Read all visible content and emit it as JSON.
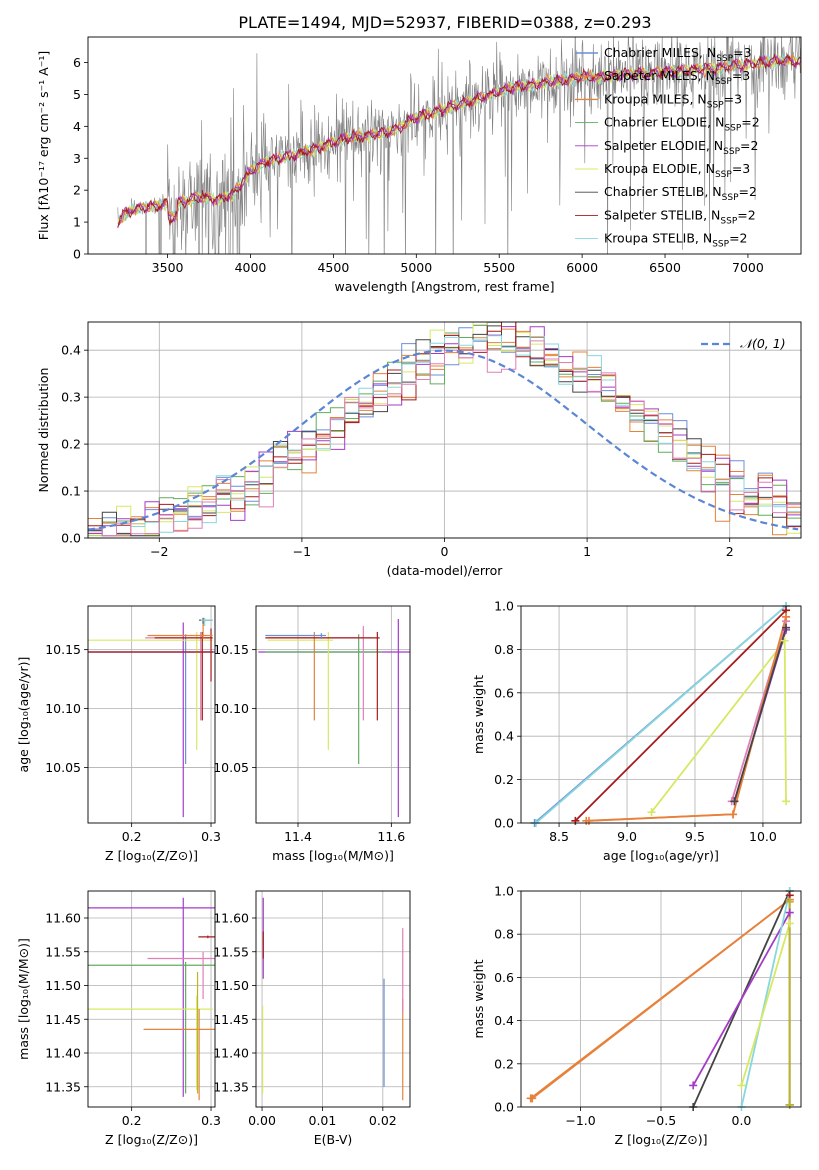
{
  "figure": {
    "title": "PLATE=1494, MJD=52937, FIBERID=0388, z=0.293"
  },
  "colors": {
    "Chabrier MILES": "#6c8fd9",
    "Salpeter MILES": "#e8803b",
    "Kroupa MILES": "#e2853a",
    "Chabrier ELODIE": "#5fae5f",
    "Salpeter ELODIE": "#a43bc8",
    "Kroupa ELODIE": "#d7e864",
    "Chabrier STELIB": "#444444",
    "Salpeter STELIB": "#a51c1c",
    "Kroupa STELIB": "#89d7dd",
    "extra_pink": "#e07fb8",
    "extra_olive": "#b6b82a",
    "data_gray": "#808080",
    "normal_curve": "#5b86d6"
  },
  "chart_data": [
    {
      "id": "spectrum",
      "type": "line",
      "xlabel": "wavelength [Angstrom, rest frame]",
      "ylabel": "Flux [fλ10⁻¹⁷ erg cm⁻² s⁻¹ A⁻¹]",
      "xlim": [
        3020,
        7320
      ],
      "ylim": [
        0,
        6.8
      ],
      "xticks": [
        3500,
        4000,
        4500,
        5000,
        5500,
        6000,
        6500,
        7000
      ],
      "yticks": [
        0,
        1,
        2,
        3,
        4,
        5,
        6
      ],
      "grid": false,
      "legend_position": "top-right",
      "legend": [
        "Chabrier MILES, N_SSP=3",
        "Salpeter MILES, N_SSP=3",
        "Kroupa MILES, N_SSP=3",
        "Chabrier ELODIE, N_SSP=2",
        "Salpeter ELODIE, N_SSP=2",
        "Kroupa ELODIE, N_SSP=3",
        "Chabrier STELIB, N_SSP=2",
        "Salpeter STELIB, N_SSP=2",
        "Kroupa STELIB, N_SSP=2"
      ],
      "model_continuum": {
        "x": [
          3200,
          3250,
          3300,
          3400,
          3500,
          3600,
          3700,
          3800,
          3900,
          4000,
          4100,
          4200,
          4300,
          4400,
          4500,
          4600,
          4700,
          4800,
          4900,
          5000,
          5100,
          5200,
          5300,
          5400,
          5500,
          5600,
          5700,
          5800,
          5900,
          6000,
          6100,
          6200,
          6300,
          6400,
          6500,
          6600,
          6700,
          6800,
          6900,
          7000,
          7100,
          7200
        ],
        "y": [
          1.0,
          1.3,
          1.4,
          1.5,
          1.55,
          1.65,
          1.8,
          1.7,
          1.9,
          2.6,
          2.9,
          3.05,
          3.15,
          3.3,
          3.5,
          3.65,
          3.7,
          3.8,
          3.95,
          4.3,
          4.45,
          4.6,
          4.75,
          4.9,
          5.1,
          5.25,
          5.3,
          5.4,
          5.45,
          5.55,
          5.55,
          5.6,
          5.65,
          5.65,
          5.7,
          5.75,
          5.8,
          5.8,
          5.9,
          5.95,
          6.0,
          6.05
        ]
      }
    },
    {
      "id": "residuals",
      "type": "line",
      "xlabel": "(data-model)/error",
      "ylabel": "Normed distribution",
      "xlim": [
        -2.5,
        2.5
      ],
      "ylim": [
        0,
        0.46
      ],
      "xticks": [
        -2,
        -1,
        0,
        1,
        2
      ],
      "yticks": [
        0.0,
        0.1,
        0.2,
        0.3,
        0.4
      ],
      "grid": true,
      "legend_position": "top-right",
      "legend": [
        "𝒩(0, 1)"
      ],
      "curve": "standard normal density"
    },
    {
      "id": "age_vs_Z",
      "type": "scatter",
      "xlabel": "Z [log₁₀(Z/Z⊙)]",
      "ylabel": "age  [log₁₀(age/yr)]",
      "xlim": [
        0.145,
        0.305
      ],
      "ylim": [
        10.003,
        10.187
      ],
      "xticks": [
        0.2,
        0.3
      ],
      "yticks": [
        10.05,
        10.1,
        10.15
      ],
      "grid": true,
      "errorbars": [
        {
          "color": "Salpeter ELODIE",
          "x": 0.265,
          "y": 10.148,
          "xerr": [
            0.12,
            0.045
          ],
          "yerr": [
            0.14,
            0.025
          ]
        },
        {
          "color": "Chabrier MILES",
          "x": 0.268,
          "y": 10.148,
          "xerr": [
            0.12,
            0.04
          ],
          "yerr": [
            0.095,
            0.015
          ]
        },
        {
          "color": "Kroupa ELODIE",
          "x": 0.282,
          "y": 10.158,
          "xerr": [
            0.14,
            0.02
          ],
          "yerr": [
            0.093,
            0.007
          ]
        },
        {
          "color": "extra_pink",
          "x": 0.287,
          "y": 10.16,
          "xerr": [
            0.07,
            0.015
          ],
          "yerr": [
            0.07,
            0.005
          ]
        },
        {
          "color": "Salpeter STELIB",
          "x": 0.289,
          "y": 10.16,
          "xerr": [
            0.06,
            0.013
          ],
          "yerr": [
            0.07,
            0.005
          ]
        },
        {
          "color": "Chabrier STELIB",
          "x": 0.29,
          "y": 10.175,
          "xerr": [
            0.005,
            0.012
          ],
          "yerr": [
            0.005,
            0.002
          ]
        },
        {
          "color": "Kroupa STELIB",
          "x": 0.292,
          "y": 10.175,
          "xerr": [
            0.005,
            0.01
          ],
          "yerr": [
            0.005,
            0.002
          ]
        },
        {
          "color": "Salpeter STELIB",
          "x": 0.3,
          "y": 10.148,
          "xerr": [
            0.155,
            0.003
          ],
          "yerr": [
            0.025,
            0.02
          ]
        },
        {
          "color": "Kroupa MILES",
          "x": 0.29,
          "y": 10.162,
          "xerr": [
            0.07,
            0.012
          ],
          "yerr": [
            0.003,
            0.01
          ]
        }
      ]
    },
    {
      "id": "age_vs_mass",
      "type": "scatter",
      "xlabel": "mass [log₁₀(M/M⊙)]",
      "ylabel": "",
      "xlim": [
        11.31,
        11.64
      ],
      "ylim": [
        10.003,
        10.187
      ],
      "xticks": [
        11.4,
        11.6
      ],
      "yticks": [
        10.05,
        10.1,
        10.15
      ],
      "grid": true,
      "errorbars": [
        {
          "color": "Salpeter ELODIE",
          "x": 11.615,
          "y": 10.148,
          "xerr": [
            0.3,
            0.03
          ],
          "yerr": [
            0.14,
            0.028
          ]
        },
        {
          "color": "Chabrier ELODIE",
          "x": 11.53,
          "y": 10.148,
          "xerr": [
            0.2,
            0.05
          ],
          "yerr": [
            0.095,
            0.015
          ]
        },
        {
          "color": "Kroupa ELODIE",
          "x": 11.465,
          "y": 10.158,
          "xerr": [
            0.13,
            0.01
          ],
          "yerr": [
            0.093,
            0.007
          ]
        },
        {
          "color": "Kroupa MILES",
          "x": 11.435,
          "y": 10.16,
          "xerr": [
            0.1,
            0.01
          ],
          "yerr": [
            0.07,
            0.005
          ]
        },
        {
          "color": "extra_pink",
          "x": 11.54,
          "y": 10.16,
          "xerr": [
            0.2,
            0.02
          ],
          "yerr": [
            0.07,
            0.01
          ]
        },
        {
          "color": "Salpeter STELIB",
          "x": 11.57,
          "y": 10.16,
          "xerr": [
            0.24,
            0.005
          ],
          "yerr": [
            0.07,
            0.005
          ]
        },
        {
          "color": "Chabrier MILES",
          "x": 11.45,
          "y": 10.162,
          "xerr": [
            0.12,
            0.01
          ],
          "yerr": [
            0.003,
            0.002
          ]
        }
      ]
    },
    {
      "id": "cumweight_vs_age",
      "type": "line",
      "xlabel": "age  [log₁₀(age/yr)]",
      "ylabel": "mass weight",
      "xlim": [
        8.22,
        10.28
      ],
      "ylim": [
        0,
        1
      ],
      "xticks": [
        8.5,
        9.0,
        9.5,
        10.0
      ],
      "yticks": [
        0.0,
        0.2,
        0.4,
        0.6,
        0.8,
        1.0
      ],
      "grid": true,
      "series": [
        {
          "color": "Chabrier MILES",
          "x": [
            8.32,
            10.17
          ],
          "y": [
            0.0,
            1.0
          ]
        },
        {
          "color": "Kroupa STELIB",
          "x": [
            8.33,
            10.17
          ],
          "y": [
            0.0,
            1.0
          ]
        },
        {
          "color": "Salpeter STELIB",
          "x": [
            8.62,
            10.17
          ],
          "y": [
            0.01,
            0.98
          ]
        },
        {
          "color": "Kroupa ELODIE",
          "x": [
            9.18,
            10.16,
            10.17
          ],
          "y": [
            0.05,
            0.84,
            0.1
          ]
        },
        {
          "color": "extra_pink",
          "x": [
            9.77,
            10.17
          ],
          "y": [
            0.1,
            0.93
          ]
        },
        {
          "color": "Salpeter ELODIE",
          "x": [
            9.79,
            10.17
          ],
          "y": [
            0.1,
            0.89
          ]
        },
        {
          "color": "Kroupa MILES",
          "x": [
            8.7,
            9.78,
            10.17
          ],
          "y": [
            0.01,
            0.04,
            0.95
          ]
        },
        {
          "color": "Salpeter MILES",
          "x": [
            8.72,
            9.78,
            10.17
          ],
          "y": [
            0.01,
            0.04,
            0.95
          ]
        },
        {
          "color": "Chabrier STELIB",
          "x": [
            9.79,
            10.17
          ],
          "y": [
            0.1,
            0.9
          ]
        }
      ]
    },
    {
      "id": "mass_vs_Z",
      "type": "scatter",
      "xlabel": "Z [log₁₀(Z/Z⊙)]",
      "ylabel": "mass [log₁₀(M/M⊙)]",
      "xlim": [
        0.145,
        0.305
      ],
      "ylim": [
        11.32,
        11.64
      ],
      "xticks": [
        0.2,
        0.3
      ],
      "yticks": [
        11.35,
        11.4,
        11.45,
        11.5,
        11.55,
        11.6
      ],
      "grid": true,
      "errorbars": [
        {
          "color": "Salpeter ELODIE",
          "x": 0.265,
          "y": 11.615,
          "xerr": [
            0.12,
            0.045
          ],
          "yerr": [
            0.28,
            0.015
          ]
        },
        {
          "color": "Chabrier ELODIE",
          "x": 0.268,
          "y": 11.53,
          "xerr": [
            0.125,
            0.04
          ],
          "yerr": [
            0.19,
            0.005
          ]
        },
        {
          "color": "Kroupa ELODIE",
          "x": 0.282,
          "y": 11.465,
          "xerr": [
            0.14,
            0.02
          ],
          "yerr": [
            0.12,
            0.02
          ]
        },
        {
          "color": "Kroupa MILES",
          "x": 0.285,
          "y": 11.435,
          "xerr": [
            0.07,
            0.02
          ],
          "yerr": [
            0.105,
            0.03
          ]
        },
        {
          "color": "extra_pink",
          "x": 0.29,
          "y": 11.54,
          "xerr": [
            0.07,
            0.015
          ],
          "yerr": [
            0.06,
            0.01
          ]
        },
        {
          "color": "Salpeter STELIB",
          "x": 0.296,
          "y": 11.572,
          "xerr": [
            0.012,
            0.01
          ],
          "yerr": [
            0.002,
            0.002
          ]
        },
        {
          "color": "extra_olive",
          "x": 0.283,
          "y": 11.48,
          "xerr": [
            0.0,
            0.0
          ],
          "yerr": [
            0.14,
            0.04
          ]
        }
      ]
    },
    {
      "id": "mass_vs_ebv",
      "type": "scatter",
      "xlabel": "E(B-V)",
      "ylabel": "",
      "xlim": [
        -0.001,
        0.0245
      ],
      "ylim": [
        11.32,
        11.64
      ],
      "xticks": [
        0.0,
        0.01,
        0.02
      ],
      "yticks": [
        11.35,
        11.4,
        11.45,
        11.5,
        11.55,
        11.6
      ],
      "grid": true,
      "errorbars": [
        {
          "color": "Salpeter ELODIE",
          "x": 0.0002,
          "y": 11.57,
          "yerr": [
            0.06,
            0.06
          ]
        },
        {
          "color": "Salpeter STELIB",
          "x": 0.0002,
          "y": 11.56,
          "yerr": [
            0.02,
            0.02
          ]
        },
        {
          "color": "Kroupa ELODIE",
          "x": 0.0001,
          "y": 11.44,
          "yerr": [
            0.1,
            0.03
          ]
        },
        {
          "color": "Chabrier MILES",
          "x": 0.0202,
          "y": 11.43,
          "yerr": [
            0.08,
            0.08
          ]
        },
        {
          "color": "Kroupa MILES",
          "x": 0.0233,
          "y": 11.41,
          "yerr": [
            0.08,
            0.07
          ]
        },
        {
          "color": "extra_pink",
          "x": 0.0233,
          "y": 11.52,
          "yerr": [
            0.06,
            0.065
          ]
        }
      ]
    },
    {
      "id": "cumweight_vs_Z",
      "type": "line",
      "xlabel": "Z [log₁₀(Z/Z⊙)]",
      "ylabel": "mass weight",
      "xlim": [
        -1.37,
        0.37
      ],
      "ylim": [
        0,
        1
      ],
      "xticks": [
        -1.0,
        -0.5,
        0.0
      ],
      "yticks": [
        0.0,
        0.2,
        0.4,
        0.6,
        0.8,
        1.0
      ],
      "grid": true,
      "series": [
        {
          "color": "Kroupa MILES",
          "x": [
            -1.31,
            0.3
          ],
          "y": [
            0.04,
            0.96
          ]
        },
        {
          "color": "Salpeter MILES",
          "x": [
            -1.3,
            0.3
          ],
          "y": [
            0.04,
            0.96
          ]
        },
        {
          "color": "Chabrier STELIB",
          "x": [
            -0.3,
            0.3
          ],
          "y": [
            0.0,
            1.0
          ]
        },
        {
          "color": "Salpeter ELODIE",
          "x": [
            -0.3,
            0.3
          ],
          "y": [
            0.1,
            0.9
          ]
        },
        {
          "color": "Kroupa STELIB",
          "x": [
            0.0,
            0.3
          ],
          "y": [
            0.0,
            1.0
          ]
        },
        {
          "color": "Kroupa ELODIE",
          "x": [
            0.0,
            0.3
          ],
          "y": [
            0.1,
            0.85
          ]
        },
        {
          "color": "Salpeter STELIB",
          "x": [
            0.3,
            0.3
          ],
          "y": [
            0.01,
            0.98
          ]
        },
        {
          "color": "extra_olive",
          "x": [
            0.3,
            0.3
          ],
          "y": [
            0.01,
            0.95
          ]
        }
      ]
    }
  ]
}
